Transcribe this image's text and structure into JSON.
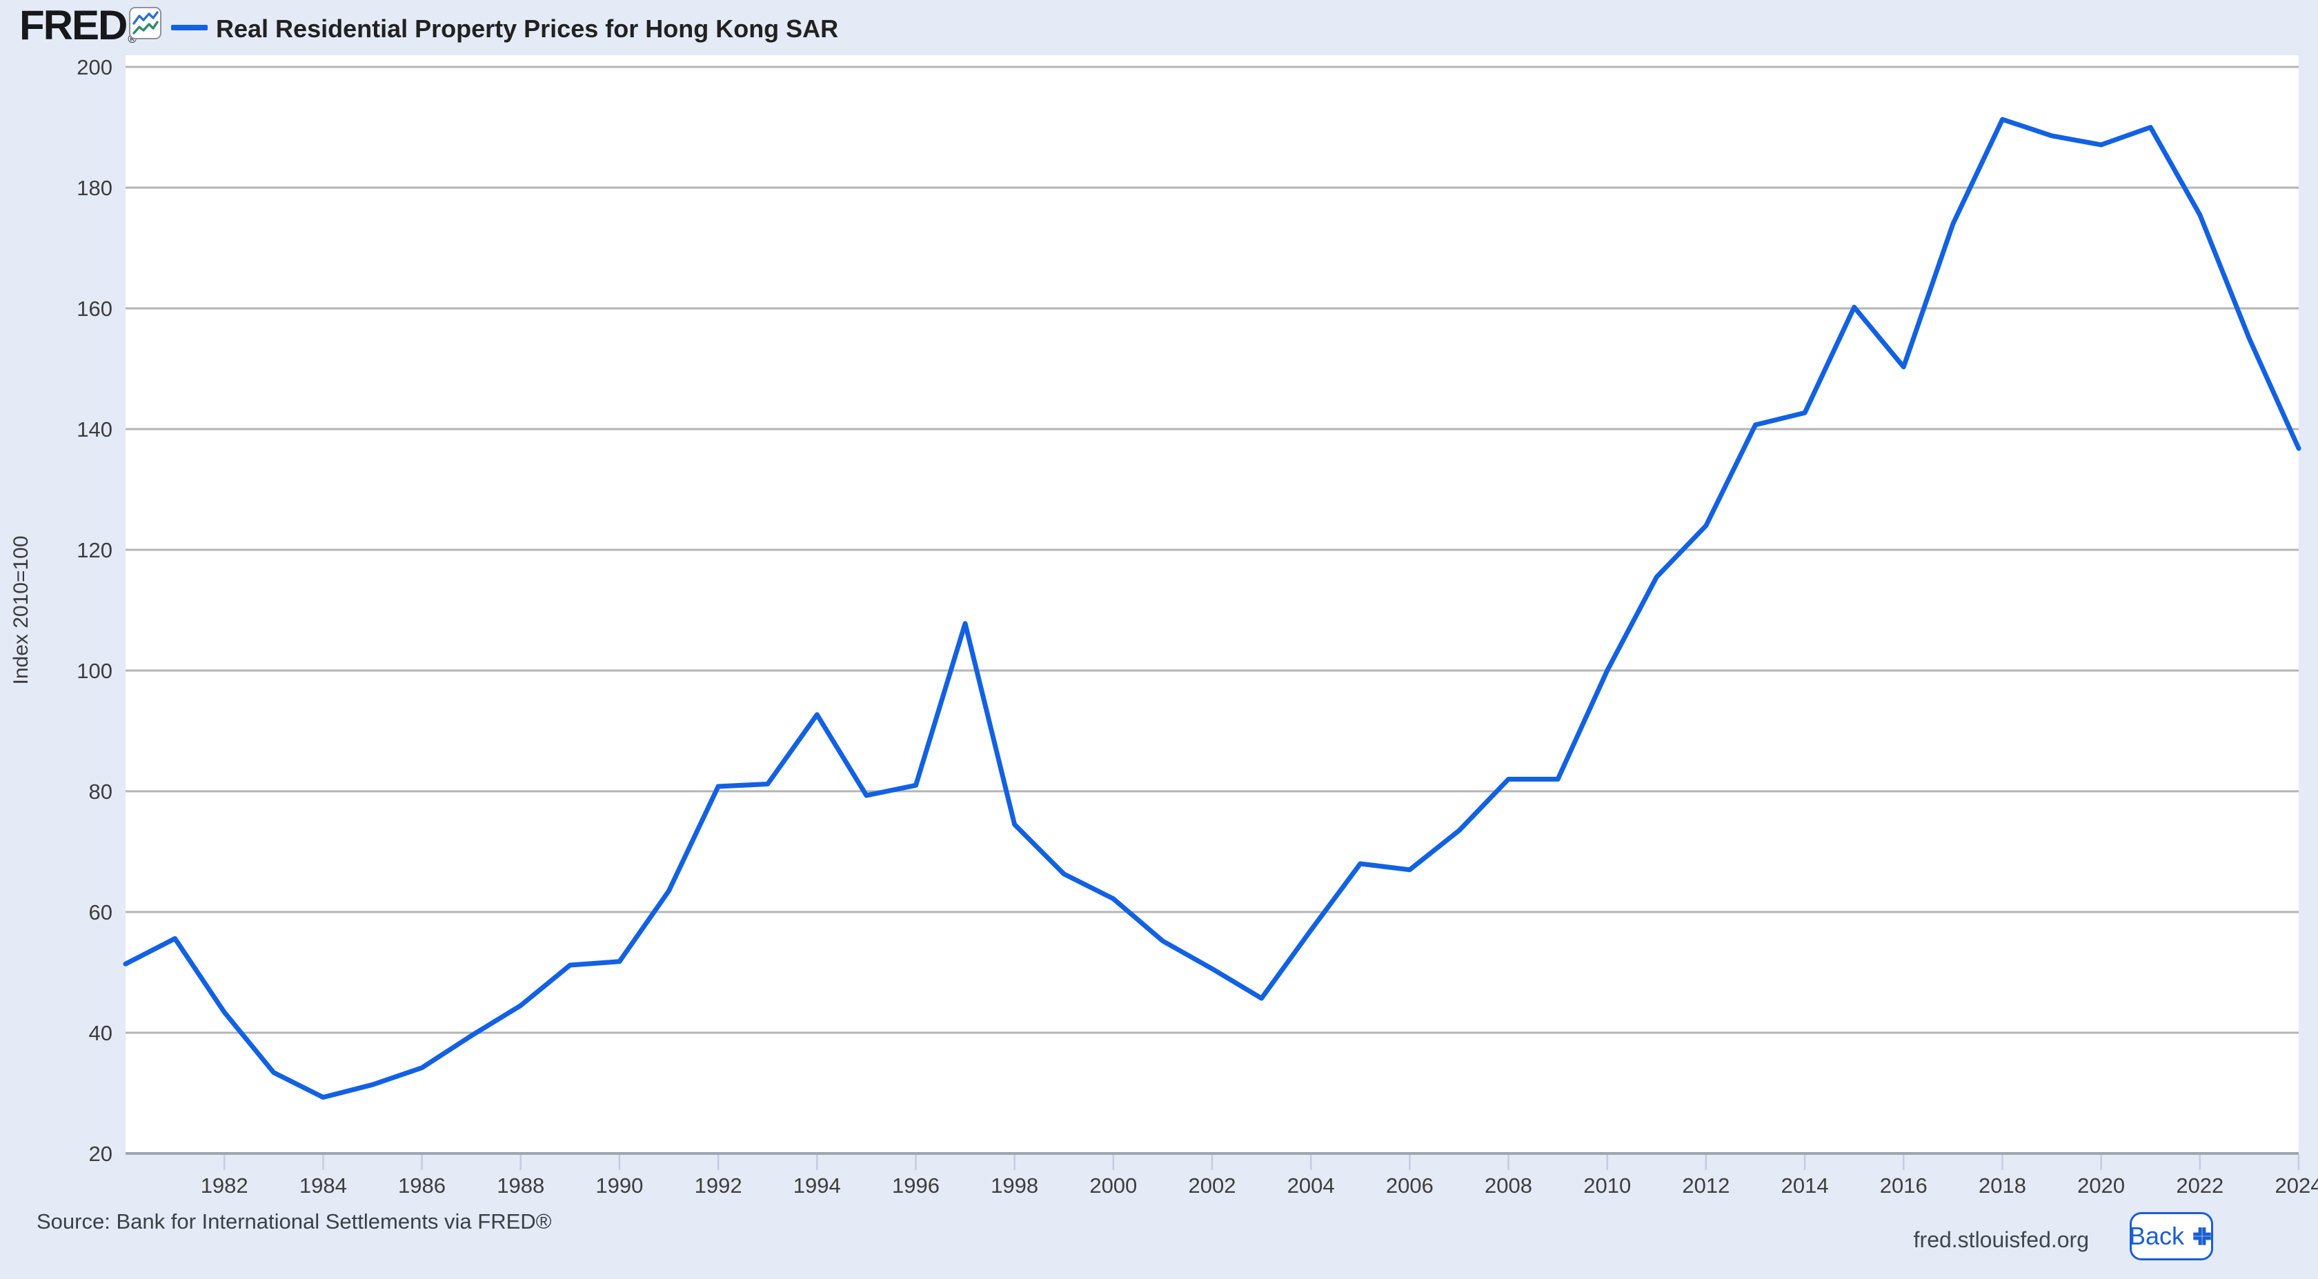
{
  "header": {
    "logo_text": "FRED",
    "registered_mark": "®",
    "legend_label": "Real Residential Property Prices for Hong Kong SAR"
  },
  "chart_data": {
    "type": "line",
    "title": "Real Residential Property Prices for Hong Kong SAR",
    "series_name": "Real Residential Property Prices for Hong Kong SAR",
    "xlabel": "",
    "ylabel": "Index 2010=100",
    "xlim": [
      1980,
      2024
    ],
    "ylim": [
      20,
      200
    ],
    "grid": true,
    "legend_position": "top-left",
    "line_color": "#1261e3",
    "grid_color": "#b4b4b4",
    "baseline_color": "#9fa6b0",
    "tick_mark_color": "#c2cde2",
    "tick_label_color": "#3d3d3d",
    "plot_bg_color": "#ffffff",
    "page_bg_color": "#e4eaf6",
    "x_ticks": [
      1982,
      1984,
      1986,
      1988,
      1990,
      1992,
      1994,
      1996,
      1998,
      2000,
      2002,
      2004,
      2006,
      2008,
      2010,
      2012,
      2014,
      2016,
      2018,
      2020,
      2022,
      2024
    ],
    "y_ticks": [
      20,
      40,
      60,
      80,
      100,
      120,
      140,
      160,
      180,
      200
    ],
    "x": [
      1980,
      1981,
      1982,
      1983,
      1984,
      1985,
      1986,
      1987,
      1988,
      1989,
      1990,
      1991,
      1992,
      1993,
      1994,
      1995,
      1996,
      1997,
      1998,
      1999,
      2000,
      2001,
      2002,
      2003,
      2004,
      2005,
      2006,
      2007,
      2008,
      2009,
      2010,
      2011,
      2012,
      2013,
      2014,
      2015,
      2016,
      2017,
      2018,
      2019,
      2020,
      2021,
      2022,
      2023,
      2024
    ],
    "values": [
      51.4,
      55.6,
      43.4,
      33.4,
      29.3,
      31.4,
      34.2,
      39.5,
      44.5,
      51.2,
      51.8,
      63.5,
      80.8,
      81.2,
      92.7,
      79.3,
      81.0,
      107.8,
      74.5,
      66.3,
      62.2,
      55.2,
      50.6,
      45.7,
      57.0,
      68.0,
      67.0,
      73.5,
      82.0,
      82.0,
      100.0,
      115.5,
      124.0,
      140.7,
      142.7,
      160.2,
      150.3,
      174.0,
      191.3,
      188.6,
      187.1,
      190.0,
      175.5,
      155.0,
      136.8
    ]
  },
  "footer": {
    "source": "Source: Bank for International Settlements via FRED®",
    "site": "fred.stlouisfed.org",
    "back_label": "Back"
  }
}
